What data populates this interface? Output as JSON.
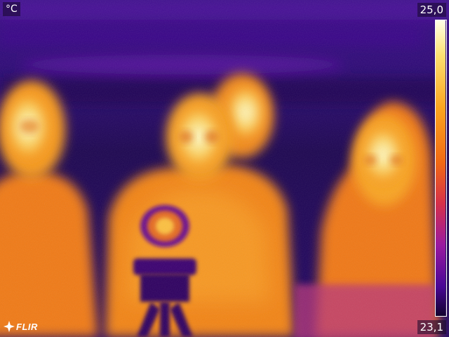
{
  "thermal_view": {
    "unit": "°C",
    "scale_max": "25,0",
    "scale_min": "23,1",
    "palette": [
      "#12022e",
      "#2a0770",
      "#5a0aa0",
      "#9a1aa0",
      "#d6304a",
      "#f26a14",
      "#fba41e",
      "#fde070",
      "#ffffe8"
    ]
  },
  "logo": {
    "text": "FLIR"
  }
}
